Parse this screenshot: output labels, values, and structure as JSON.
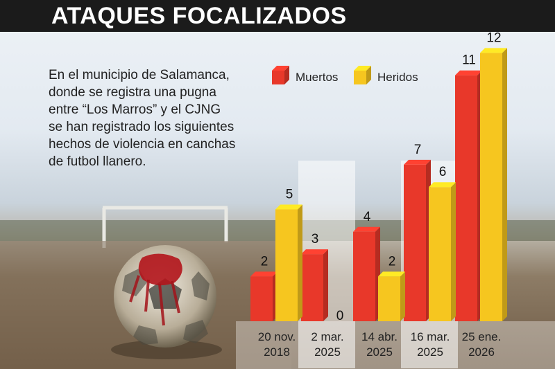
{
  "header": {
    "title": "ATAQUES FOCALIZADOS"
  },
  "intro_lines": [
    "En el municipio de Salamanca,",
    "donde se registra una pugna",
    "entre “Los Marros” y el CJNG",
    "se han registrado  los siguientes",
    "hechos de violencia  en canchas",
    "de futbol llanero."
  ],
  "chart_data": {
    "type": "bar",
    "categories": [
      [
        "20 nov.",
        "2018"
      ],
      [
        "2 mar.",
        "2025"
      ],
      [
        "14 abr.",
        "2025"
      ],
      [
        "16 mar.",
        "2025"
      ],
      [
        "25 ene.",
        "2026"
      ]
    ],
    "series": [
      {
        "name": "Muertos",
        "values": [
          2,
          3,
          4,
          7,
          11
        ],
        "color": "#e8382a"
      },
      {
        "name": "Heridos",
        "values": [
          5,
          0,
          2,
          6,
          12
        ],
        "color": "#f6c61f"
      }
    ],
    "legend_position": "top",
    "grid": false
  }
}
